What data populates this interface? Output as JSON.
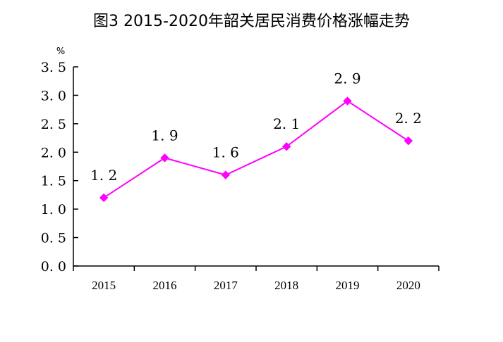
{
  "chart_data": {
    "type": "line",
    "title": "图3 2015-2020年韶关居民消费价格涨幅走势",
    "unit": "%",
    "categories": [
      "2015",
      "2016",
      "2017",
      "2018",
      "2019",
      "2020"
    ],
    "values": [
      1.2,
      1.9,
      1.6,
      2.1,
      2.9,
      2.2
    ],
    "data_labels": [
      "1.2",
      "1.9",
      "1.6",
      "2.1",
      "2.9",
      "2.2"
    ],
    "y_ticks": [
      "0.0",
      "0.5",
      "1.0",
      "1.5",
      "2.0",
      "2.5",
      "3.0",
      "3.5"
    ],
    "ylim": [
      0,
      3.5
    ],
    "color": "#ff00ff",
    "marker": "diamond",
    "grid": false,
    "legend": "none"
  }
}
